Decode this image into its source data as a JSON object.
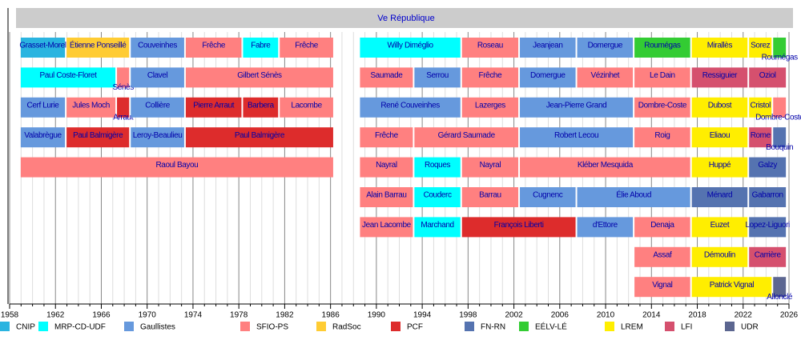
{
  "chart_data": {
    "type": "timeline",
    "title": "Ve République",
    "xlim": [
      1958,
      2026
    ],
    "x_ticks": [
      1958,
      1962,
      1966,
      1970,
      1974,
      1978,
      1982,
      1986,
      1990,
      1994,
      1998,
      2002,
      2006,
      2010,
      2014,
      2018,
      2022,
      2026
    ],
    "legend": [
      {
        "name": "CNIP",
        "color": "#2AB4E0"
      },
      {
        "name": "MRP-CD-UDF",
        "color": "#00FFFF"
      },
      {
        "name": "Gaullistes",
        "color": "#6699DD"
      },
      {
        "name": "SFIO-PS",
        "color": "#FF8080"
      },
      {
        "name": "RadSoc",
        "color": "#FFCC33"
      },
      {
        "name": "PCF",
        "color": "#DD2C2C"
      },
      {
        "name": "FN-RN",
        "color": "#5573B0"
      },
      {
        "name": "EÉLV-LÉ",
        "color": "#33CC33"
      },
      {
        "name": "LREM",
        "color": "#FFEE00"
      },
      {
        "name": "LFI",
        "color": "#D5506E"
      },
      {
        "name": "UDR",
        "color": "#5C6690"
      }
    ],
    "rows_before_1986": [
      [
        [
          "Grasset-Morel",
          "CNIP",
          1958.9,
          1962.9
        ],
        [
          "Étienne Ponseillé",
          "RadSoc",
          1962.9,
          1968.5
        ],
        [
          "Couveinhes",
          "Gaullistes",
          1968.5,
          1973.3
        ],
        [
          "Frêche",
          "SFIO-PS",
          1973.3,
          1978.3
        ],
        [
          "Fabre",
          "MRP-CD-UDF",
          1978.3,
          1981.5
        ],
        [
          "Frêche",
          "SFIO-PS",
          1981.5,
          1986.3
        ]
      ],
      [
        [
          "Paul Coste-Floret",
          "MRP-CD-UDF",
          1958.9,
          1967.3
        ],
        [
          "Sénès",
          "SFIO-PS",
          1967.3,
          1968.5
        ],
        [
          "Clavel",
          "Gaullistes",
          1968.5,
          1973.3
        ],
        [
          "Gilbert Sénès",
          "SFIO-PS",
          1973.3,
          1986.3
        ]
      ],
      [
        [
          "Cerf Lurie",
          "Gaullistes",
          1958.9,
          1962.9
        ],
        [
          "Jules Moch",
          "SFIO-PS",
          1962.9,
          1967.3
        ],
        [
          "Arraut",
          "PCF",
          1967.3,
          1968.5
        ],
        [
          "Collière",
          "Gaullistes",
          1968.5,
          1973.3
        ],
        [
          "Pierre Arraut",
          "PCF",
          1973.3,
          1978.3
        ],
        [
          "Barbera",
          "PCF",
          1978.3,
          1981.5
        ],
        [
          "Lacombe",
          "SFIO-PS",
          1981.5,
          1986.3
        ]
      ],
      [
        [
          "Valabrègue",
          "Gaullistes",
          1958.9,
          1962.9
        ],
        [
          "Paul Balmigère",
          "PCF",
          1962.9,
          1968.5
        ],
        [
          "Leroy-Beaulieu",
          "Gaullistes",
          1968.5,
          1973.3
        ],
        [
          "Paul Balmigère",
          "PCF",
          1973.3,
          1986.3
        ]
      ],
      [
        [
          "Raoul Bayou",
          "SFIO-PS",
          1958.9,
          1986.3
        ]
      ]
    ],
    "rows_since_1988": [
      [
        [
          "Willy Diméglio",
          "MRP-CD-UDF",
          1988.5,
          1997.4
        ],
        [
          "Roseau",
          "SFIO-PS",
          1997.4,
          2002.45
        ],
        [
          "Jeanjean",
          "Gaullistes",
          2002.45,
          2007.45
        ],
        [
          "Domergue",
          "Gaullistes",
          2007.45,
          2012.45
        ],
        [
          "Roumégas",
          "EÉLV-LÉ",
          2012.45,
          2017.45
        ],
        [
          "Mirallès",
          "LREM",
          2017.45,
          2022.45
        ],
        [
          "Sorez",
          "LREM",
          2022.45,
          2024.55
        ],
        [
          "Roumégas",
          "EÉLV-LÉ",
          2024.55,
          2025.8
        ]
      ],
      [
        [
          "Saumade",
          "SFIO-PS",
          1988.5,
          1993.25
        ],
        [
          "Serrou",
          "Gaullistes",
          1993.25,
          1997.4
        ],
        [
          "Frêche",
          "SFIO-PS",
          1997.4,
          2002.45
        ],
        [
          "Domergue",
          "Gaullistes",
          2002.45,
          2007.45
        ],
        [
          "Vézinhet",
          "SFIO-PS",
          2007.45,
          2012.45
        ],
        [
          "Le Dain",
          "SFIO-PS",
          2012.45,
          2017.45
        ],
        [
          "Ressiguier",
          "LFI",
          2017.45,
          2022.45
        ],
        [
          "Oziol",
          "LFI",
          2022.45,
          2025.8
        ]
      ],
      [
        [
          "René Couveinhes",
          "Gaullistes",
          1988.5,
          1997.4
        ],
        [
          "Lazerges",
          "SFIO-PS",
          1997.4,
          2002.45
        ],
        [
          "Jean-Pierre Grand",
          "Gaullistes",
          2002.45,
          2012.45
        ],
        [
          "Dombre-Coste",
          "SFIO-PS",
          2012.45,
          2017.45
        ],
        [
          "Dubost",
          "LREM",
          2017.45,
          2022.45
        ],
        [
          "Cristol",
          "LREM",
          2022.45,
          2024.55
        ],
        [
          "Dombre-Coste",
          "SFIO-PS",
          2024.55,
          2025.8
        ]
      ],
      [
        [
          "Frêche",
          "SFIO-PS",
          1988.5,
          1993.25
        ],
        [
          "Gérard Saumade",
          "SFIO-PS",
          1993.25,
          2002.45
        ],
        [
          "Robert Lecou",
          "Gaullistes",
          2002.45,
          2012.45
        ],
        [
          "Roig",
          "SFIO-PS",
          2012.45,
          2017.45
        ],
        [
          "Eliaou",
          "LREM",
          2017.45,
          2022.45
        ],
        [
          "Rome",
          "LFI",
          2022.45,
          2024.55
        ],
        [
          "Bouquin",
          "FN-RN",
          2024.55,
          2025.8
        ]
      ],
      [
        [
          "Nayral",
          "SFIO-PS",
          1988.5,
          1993.25
        ],
        [
          "Roques",
          "MRP-CD-UDF",
          1993.25,
          1997.4
        ],
        [
          "Nayral",
          "SFIO-PS",
          1997.4,
          2002.45
        ],
        [
          "Kléber Mesquida",
          "SFIO-PS",
          2002.45,
          2017.45
        ],
        [
          "Huppé",
          "LREM",
          2017.45,
          2022.45
        ],
        [
          "Galzy",
          "FN-RN",
          2022.45,
          2025.8
        ]
      ],
      [
        [
          "Alain Barrau",
          "SFIO-PS",
          1988.5,
          1993.25
        ],
        [
          "Couderc",
          "MRP-CD-UDF",
          1993.25,
          1997.4
        ],
        [
          "Barrau",
          "SFIO-PS",
          1997.4,
          2002.45
        ],
        [
          "Cugnenc",
          "Gaullistes",
          2002.45,
          2007.45
        ],
        [
          "Élie Aboud",
          "Gaullistes",
          2007.45,
          2017.45
        ],
        [
          "Ménard",
          "FN-RN",
          2017.45,
          2022.45
        ],
        [
          "Gabarron",
          "FN-RN",
          2022.45,
          2025.8
        ]
      ],
      [
        [
          "Jean Lacombe",
          "SFIO-PS",
          1988.5,
          1993.25
        ],
        [
          "Marchand",
          "MRP-CD-UDF",
          1993.25,
          1997.4
        ],
        [
          "François Liberti",
          "PCF",
          1997.4,
          2007.45
        ],
        [
          "d'Ettore",
          "Gaullistes",
          2007.45,
          2012.45
        ],
        [
          "Denaja",
          "SFIO-PS",
          2012.45,
          2017.45
        ],
        [
          "Euzet",
          "LREM",
          2017.45,
          2022.45
        ],
        [
          "Lopez-Liguori",
          "FN-RN",
          2022.45,
          2025.8
        ]
      ],
      [
        [
          "Assaf",
          "SFIO-PS",
          2012.45,
          2017.45
        ],
        [
          "Démoulin",
          "LREM",
          2017.45,
          2022.45
        ],
        [
          "Carrière",
          "LFI",
          2022.45,
          2025.8
        ]
      ],
      [
        [
          "Vignal",
          "SFIO-PS",
          2012.45,
          2017.45
        ],
        [
          "Patrick Vignal",
          "LREM",
          2017.45,
          2024.55
        ],
        [
          "Allonclé",
          "UDR",
          2024.55,
          2025.8
        ]
      ]
    ]
  }
}
